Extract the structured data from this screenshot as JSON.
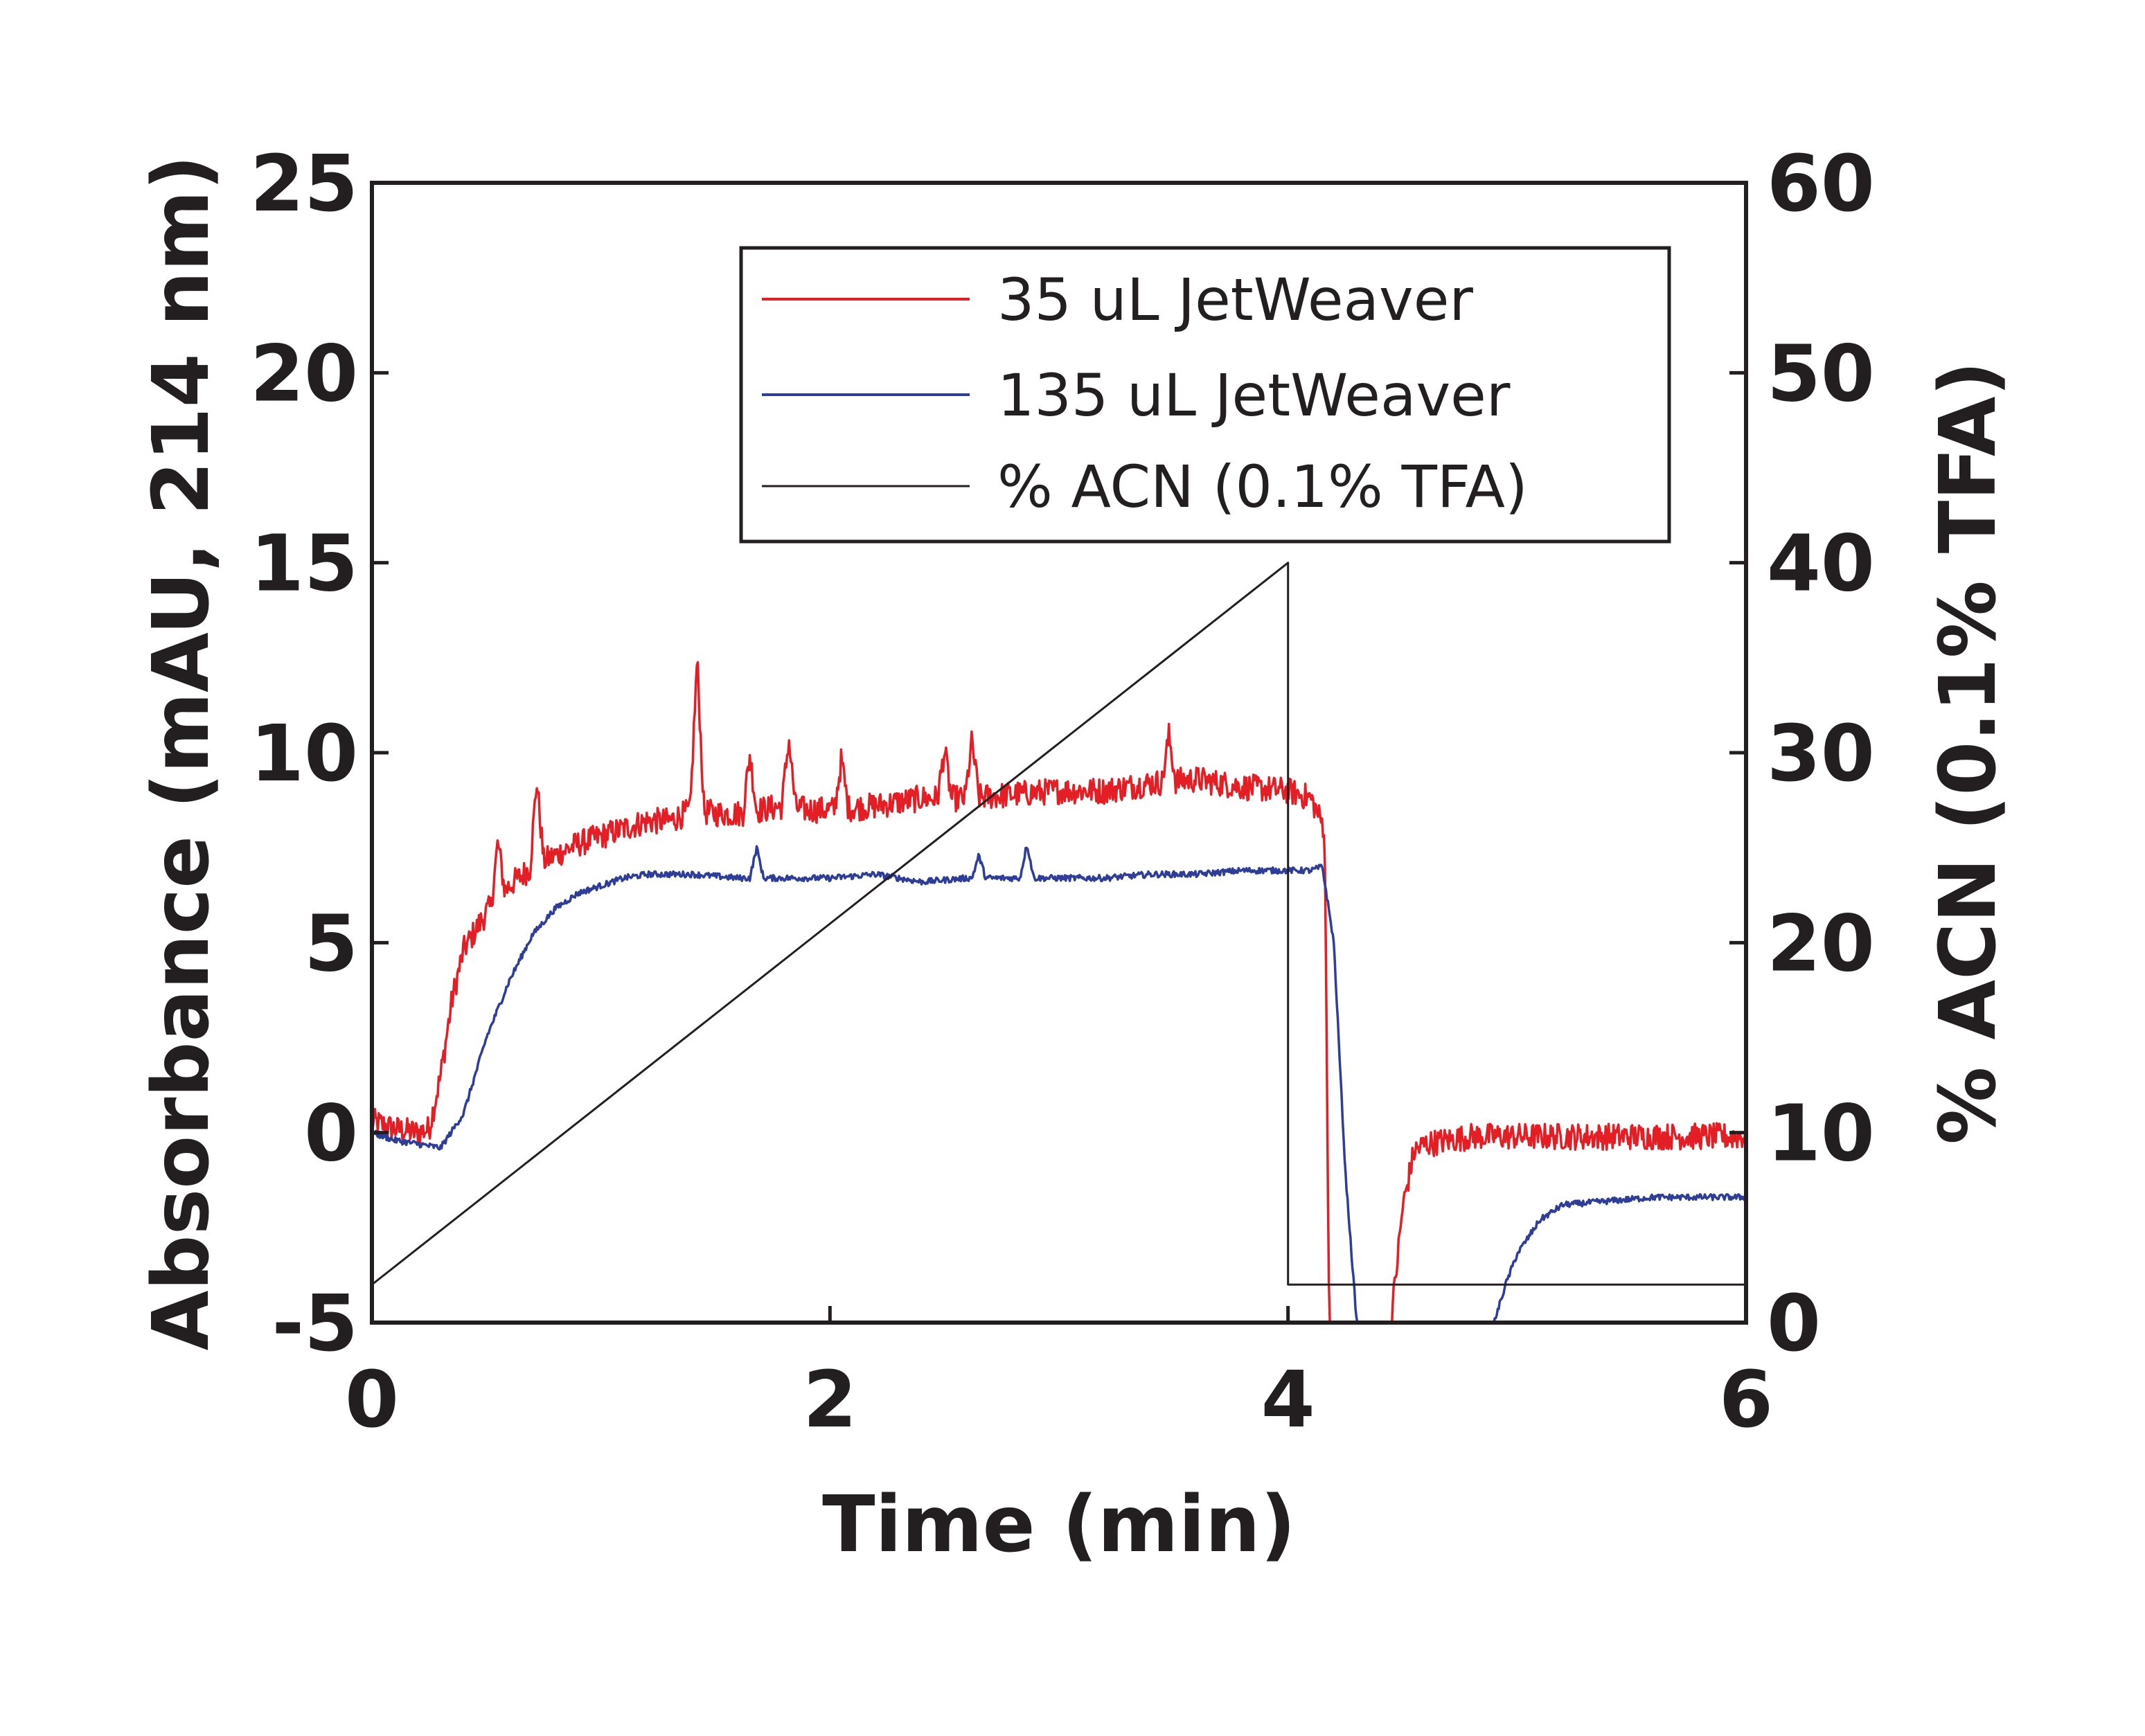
{
  "chart_data": {
    "type": "line",
    "title": "",
    "xlabel": "Time (min)",
    "ylabel": "Absorbance (mAU, 214 nm)",
    "y2label": "% ACN (0.1% TFA)",
    "xlim": [
      0,
      6
    ],
    "ylim": [
      -5,
      25
    ],
    "y2lim": [
      0,
      60
    ],
    "x_ticks": [
      "0",
      "2",
      "4",
      "6"
    ],
    "y_ticks": [
      "-5",
      "0",
      "5",
      "10",
      "15",
      "20",
      "25"
    ],
    "y2_ticks": [
      "0",
      "10",
      "20",
      "30",
      "40",
      "50",
      "60"
    ],
    "grid": false,
    "legend_position": "top-right",
    "series": [
      {
        "name": "35 uL JetWeaver",
        "axis": "left",
        "color": "#e31e24",
        "noise": 0.35,
        "x": [
          0,
          0.1,
          0.2,
          0.25,
          0.3,
          0.35,
          0.4,
          0.45,
          0.5,
          0.6,
          0.7,
          0.8,
          0.9,
          1.0,
          1.1,
          1.2,
          1.3,
          1.4,
          1.5,
          1.6,
          1.7,
          1.8,
          1.9,
          2.0,
          2.2,
          2.4,
          2.6,
          2.8,
          3.0,
          3.2,
          3.4,
          3.6,
          3.8,
          4.0,
          4.1,
          4.16,
          4.18,
          4.25,
          4.35,
          4.45,
          4.5,
          4.55,
          4.6,
          4.7,
          4.8,
          5.0,
          5.2,
          5.5,
          5.8,
          6.0
        ],
        "y": [
          0.3,
          0.1,
          0.0,
          0.1,
          1.5,
          3.5,
          4.8,
          5.3,
          5.8,
          6.5,
          7.0,
          7.3,
          7.6,
          7.8,
          8.0,
          8.2,
          8.2,
          8.5,
          8.4,
          8.4,
          8.5,
          8.6,
          8.5,
          8.5,
          8.6,
          8.8,
          8.8,
          8.9,
          9.0,
          9.0,
          9.2,
          9.3,
          9.1,
          9.0,
          8.8,
          8.0,
          -5.0,
          -5.0,
          -5.0,
          -5.0,
          -2.0,
          -0.5,
          -0.3,
          -0.2,
          -0.1,
          -0.1,
          -0.1,
          -0.1,
          -0.1,
          -0.1
        ],
        "spikes": [
          [
            0.55,
            1.5
          ],
          [
            0.72,
            2.2
          ],
          [
            1.42,
            4.0
          ],
          [
            1.65,
            1.5
          ],
          [
            1.82,
            1.8
          ],
          [
            2.05,
            1.3
          ],
          [
            2.5,
            1.3
          ],
          [
            2.62,
            1.5
          ],
          [
            3.48,
            1.2
          ]
        ]
      },
      {
        "name": "135 uL JetWeaver",
        "axis": "left",
        "color": "#2e3d98",
        "noise": 0.08,
        "x": [
          0,
          0.1,
          0.2,
          0.3,
          0.4,
          0.5,
          0.6,
          0.7,
          0.8,
          0.9,
          1.0,
          1.1,
          1.2,
          1.4,
          1.6,
          1.8,
          2.0,
          2.2,
          2.4,
          2.6,
          2.8,
          3.0,
          3.2,
          3.4,
          3.6,
          3.8,
          4.0,
          4.1,
          4.15,
          4.2,
          4.25,
          4.3,
          4.4,
          4.6,
          4.8,
          4.9,
          4.95,
          5.0,
          5.1,
          5.2,
          5.4,
          5.6,
          5.8,
          6.0
        ],
        "y": [
          0.0,
          -0.2,
          -0.3,
          -0.4,
          0.5,
          2.5,
          4.0,
          5.2,
          5.9,
          6.3,
          6.5,
          6.7,
          6.8,
          6.8,
          6.7,
          6.7,
          6.7,
          6.8,
          6.6,
          6.7,
          6.7,
          6.7,
          6.7,
          6.8,
          6.8,
          6.9,
          6.9,
          6.9,
          7.0,
          5.0,
          -1.0,
          -5.0,
          -5.0,
          -5.0,
          -5.0,
          -5.0,
          -4.0,
          -3.2,
          -2.3,
          -1.9,
          -1.8,
          -1.7,
          -1.7,
          -1.7
        ],
        "spikes": [
          [
            1.68,
            0.8
          ],
          [
            2.65,
            0.6
          ],
          [
            2.86,
            0.9
          ]
        ]
      },
      {
        "name": "% ACN (0.1% TFA)",
        "axis": "right",
        "color": "#231f20",
        "x": [
          0,
          4.0,
          4.0,
          6.0
        ],
        "y": [
          2,
          40,
          2,
          2
        ]
      }
    ]
  }
}
